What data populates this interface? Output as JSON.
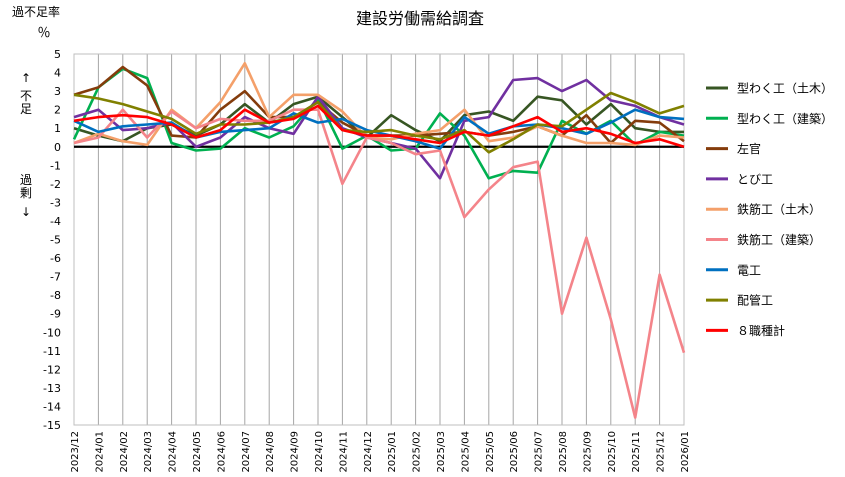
{
  "chart_data": {
    "type": "line",
    "title": "建設労働需給調査",
    "ylabel_top": "過不足率",
    "yunit": "％",
    "ylabel_up": "不足",
    "ylabel_down": "過剰",
    "arrow_up": "↑",
    "arrow_down": "↓",
    "ylim": [
      -15,
      5
    ],
    "yticks": [
      5,
      4,
      3,
      2,
      1,
      0,
      -1,
      -2,
      -3,
      -4,
      -5,
      -6,
      -7,
      -8,
      -9,
      -10,
      -11,
      -12,
      -13,
      -14,
      -15
    ],
    "grid": "vertical",
    "legend_position": "right",
    "categories": [
      "2023/12",
      "2024/01",
      "2024/02",
      "2024/03",
      "2024/04",
      "2024/05",
      "2024/06",
      "2024/07",
      "2024/08",
      "2024/09",
      "2024/10",
      "2024/11",
      "2024/12",
      "2025/01",
      "2025/02",
      "2025/03",
      "2025/04",
      "2025/05",
      "2025/06",
      "2025/07",
      "2025/08",
      "2025/09",
      "2025/10",
      "2025/11",
      "2025/12",
      "2026/01"
    ],
    "series": [
      {
        "name": "型わく工（土木）",
        "color": "#375623",
        "values": [
          1.0,
          0.6,
          0.3,
          1.0,
          1.2,
          0.6,
          1.2,
          2.3,
          1.3,
          2.3,
          2.7,
          1.6,
          0.5,
          1.7,
          0.9,
          0.3,
          1.7,
          1.9,
          1.4,
          2.7,
          2.5,
          1.2,
          2.3,
          1.0,
          0.8,
          0.8
        ]
      },
      {
        "name": "型わく工（建築）",
        "color": "#00B050",
        "values": [
          0.4,
          3.2,
          4.2,
          3.7,
          0.2,
          -0.2,
          -0.1,
          1.0,
          0.5,
          1.1,
          2.6,
          -0.1,
          0.6,
          -0.2,
          -0.1,
          1.8,
          0.6,
          -1.7,
          -1.3,
          -1.4,
          1.4,
          0.7,
          1.4,
          0.1,
          0.8,
          0.6
        ]
      },
      {
        "name": "左官",
        "color": "#843C0C",
        "values": [
          2.8,
          3.2,
          4.3,
          3.3,
          0.6,
          0.5,
          2.0,
          3.0,
          1.6,
          1.6,
          2.4,
          1.3,
          0.6,
          0.6,
          0.6,
          0.7,
          0.8,
          0.6,
          0.8,
          1.1,
          0.6,
          1.7,
          0.2,
          1.4,
          1.3,
          0.3
        ]
      },
      {
        "name": "とび工",
        "color": "#7030A0",
        "values": [
          1.6,
          2.0,
          0.9,
          1.0,
          1.3,
          0.0,
          0.5,
          1.6,
          1.0,
          0.7,
          2.7,
          1.0,
          0.5,
          0.2,
          -0.1,
          -1.7,
          1.4,
          1.6,
          3.6,
          3.7,
          3.0,
          3.6,
          2.5,
          2.2,
          1.6,
          1.2
        ]
      },
      {
        "name": "鉄筋工（土木）",
        "color": "#F4A06A",
        "values": [
          0.2,
          0.7,
          0.3,
          0.1,
          2.0,
          1.0,
          2.4,
          4.5,
          1.6,
          2.8,
          2.8,
          1.9,
          0.5,
          0.4,
          0.7,
          0.9,
          2.0,
          0.3,
          0.5,
          1.1,
          0.6,
          0.2,
          0.2,
          0.1,
          0.6,
          0.5
        ]
      },
      {
        "name": "鉄筋工（建築）",
        "color": "#F4848A",
        "values": [
          0.2,
          0.5,
          2.0,
          0.5,
          1.9,
          1.0,
          1.5,
          1.4,
          1.4,
          2.0,
          2.0,
          -2.0,
          0.5,
          0.2,
          -0.4,
          -0.2,
          -3.8,
          -2.3,
          -1.1,
          -0.8,
          -9.0,
          -4.9,
          -9.3,
          -14.6,
          -6.9,
          -11.1
        ]
      },
      {
        "name": "電工",
        "color": "#0070C0",
        "values": [
          1.4,
          0.8,
          1.1,
          1.2,
          1.3,
          0.5,
          0.8,
          0.9,
          1.0,
          1.8,
          1.3,
          1.5,
          0.9,
          0.6,
          0.3,
          -0.1,
          1.6,
          0.7,
          1.1,
          1.2,
          1.0,
          0.7,
          1.3,
          2.0,
          1.6,
          1.5
        ]
      },
      {
        "name": "配管工",
        "color": "#808000",
        "values": [
          2.8,
          2.6,
          2.3,
          1.9,
          1.5,
          0.7,
          1.2,
          1.2,
          1.3,
          1.6,
          2.4,
          0.9,
          0.8,
          0.9,
          0.6,
          0.4,
          0.9,
          -0.3,
          0.4,
          1.2,
          1.1,
          2.0,
          2.9,
          2.4,
          1.8,
          2.2
        ]
      },
      {
        "name": "８職種計",
        "color": "#FF0000",
        "values": [
          1.4,
          1.6,
          1.7,
          1.6,
          1.2,
          0.5,
          0.9,
          2.0,
          1.3,
          1.5,
          2.2,
          0.9,
          0.6,
          0.6,
          0.4,
          0.2,
          0.8,
          0.6,
          1.1,
          1.6,
          0.8,
          1.0,
          0.7,
          0.2,
          0.4,
          0.0
        ]
      }
    ]
  }
}
